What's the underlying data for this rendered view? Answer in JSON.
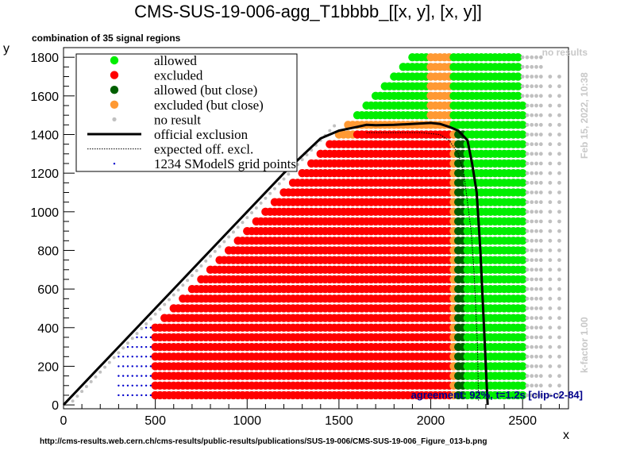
{
  "chart_data": {
    "type": "scatter",
    "title": "CMS-SUS-19-006-agg_T1bbbb_[[x, y], [x, y]]",
    "subtitle": "combination of 35 signal regions",
    "xlabel": "x",
    "ylabel": "y",
    "xlim": [
      0,
      2750
    ],
    "ylim": [
      -20,
      1850
    ],
    "xticks": [
      0,
      500,
      1000,
      1500,
      2000,
      2500
    ],
    "yticks": [
      0,
      200,
      400,
      600,
      800,
      1000,
      1200,
      1400,
      1600,
      1800
    ],
    "grid": false,
    "legend_position": "top-left",
    "colors": {
      "allowed": "#00ee00",
      "excluded": "#ff0000",
      "allowed_close": "#005f00",
      "excluded_close": "#ff9933",
      "no_result": "#c0c0c0",
      "official_exclusion": "#000000",
      "expected": "#000000",
      "grid_points": "#0000cc",
      "agreement": "#00008b",
      "side_text": "#c8c8c8"
    },
    "legend": [
      {
        "key": "allowed",
        "label": "allowed"
      },
      {
        "key": "excluded",
        "label": "excluded"
      },
      {
        "key": "allowed_close",
        "label": "allowed (but close)"
      },
      {
        "key": "excluded_close",
        "label": "excluded (but close)"
      },
      {
        "key": "no_result",
        "label": "no result"
      },
      {
        "key": "official_exclusion",
        "label": "official exclusion"
      },
      {
        "key": "expected",
        "label": "expected off. excl."
      },
      {
        "key": "grid_points",
        "label": "1234 SModelS grid points"
      }
    ],
    "grid_spec": {
      "x_start": 500,
      "x_step": 25,
      "y_start": 50,
      "y_step": 50,
      "y_max": 1800,
      "allowed_close_cols": [
        2150,
        2175
      ],
      "excluded_close_cols": [
        2125
      ],
      "no_result_margin": 200
    },
    "official_exclusion": {
      "x": [
        0,
        300,
        600,
        900,
        1200,
        1400,
        1500,
        1600,
        1650,
        1700,
        1800,
        1900,
        2000,
        2050,
        2100,
        2150,
        2200,
        2225,
        2250,
        2260,
        2270,
        2280,
        2290,
        2300,
        2310
      ],
      "y": [
        0,
        300,
        600,
        900,
        1200,
        1380,
        1420,
        1440,
        1450,
        1448,
        1450,
        1455,
        1460,
        1455,
        1440,
        1420,
        1370,
        1250,
        1100,
        950,
        800,
        600,
        400,
        200,
        0
      ]
    },
    "expected_exclusion": {
      "x": [
        1650,
        1800,
        1950,
        2050,
        2100,
        2150,
        2180,
        2200,
        2220,
        2235,
        2245,
        2255,
        2260
      ],
      "y": [
        1410,
        1410,
        1410,
        1400,
        1370,
        1300,
        1200,
        1050,
        900,
        700,
        500,
        300,
        20
      ]
    },
    "side_left_label": "k-factor 1.00",
    "side_top_label": "Feb 15, 2022, 10:38",
    "no_results_note": "no results",
    "agreement_text": "agreement: 92%, t=1.2s [clip-c2-84]",
    "source_url": "http://cms-results.web.cern.ch/cms-results/public-results/publications/SUS-19-006/CMS-SUS-19-006_Figure_013-b.png"
  }
}
